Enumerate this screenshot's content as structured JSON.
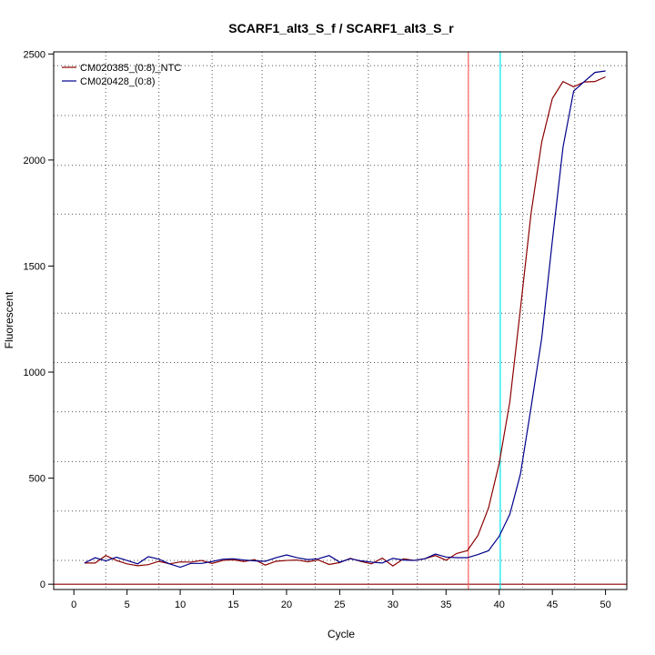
{
  "chart_data": {
    "type": "line",
    "title": "SCARF1_alt3_S_f / SCARF1_alt3_S_r",
    "xlabel": "Cycle",
    "ylabel": "Fluorescent",
    "xlim": [
      -1.9,
      52
    ],
    "ylim": [
      -25,
      2510
    ],
    "xticks": [
      0,
      5,
      10,
      15,
      20,
      25,
      30,
      35,
      40,
      45,
      50
    ],
    "yticks": [
      0,
      500,
      1000,
      1500,
      2000,
      2500
    ],
    "grid": true,
    "grid_style": "dotted",
    "grid_x": [
      3,
      8,
      13,
      17.7,
      22.7,
      27.7,
      32.3,
      37.1,
      42.2,
      47.1
    ],
    "grid_y": [
      112,
      345,
      578,
      813,
      1045,
      1278,
      1745,
      1975,
      2210,
      2445
    ],
    "legend_position": "top-left",
    "baseline": {
      "y": 0,
      "color": "#8b0000"
    },
    "threshold_lines": [
      {
        "x": 37.1,
        "color": "#ff6060"
      },
      {
        "x": 40.1,
        "color": "#00e5ee"
      }
    ],
    "x": [
      1,
      2,
      3,
      4,
      5,
      6,
      7,
      8,
      9,
      10,
      11,
      12,
      13,
      14,
      15,
      16,
      17,
      18,
      19,
      20,
      21,
      22,
      23,
      24,
      25,
      26,
      27,
      28,
      29,
      30,
      31,
      32,
      33,
      34,
      35,
      36,
      37,
      38,
      39,
      40,
      41,
      42,
      43,
      44,
      45,
      46,
      47,
      48,
      49,
      50
    ],
    "series": [
      {
        "name": "CM020385_(0:8)_NTC",
        "color": "#8b0000",
        "values": [
          100,
          100,
          135,
          112,
          96,
          87,
          92,
          108,
          96,
          105,
          104,
          112,
          98,
          112,
          115,
          107,
          116,
          90,
          108,
          112,
          114,
          106,
          114,
          93,
          102,
          122,
          107,
          96,
          123,
          86,
          120,
          112,
          120,
          135,
          113,
          145,
          158,
          230,
          360,
          570,
          860,
          1300,
          1750,
          2085,
          2290,
          2370,
          2345,
          2368,
          2370,
          2392
        ]
      },
      {
        "name": "CM020428_(0:8)",
        "color": "#00008b",
        "values": [
          100,
          125,
          110,
          127,
          112,
          96,
          130,
          118,
          96,
          80,
          98,
          98,
          107,
          118,
          120,
          114,
          110,
          108,
          125,
          138,
          125,
          116,
          120,
          135,
          104,
          120,
          110,
          104,
          100,
          122,
          114,
          112,
          120,
          142,
          128,
          125,
          125,
          140,
          158,
          226,
          330,
          520,
          835,
          1160,
          1620,
          2060,
          2325,
          2370,
          2413,
          2420
        ]
      }
    ]
  }
}
